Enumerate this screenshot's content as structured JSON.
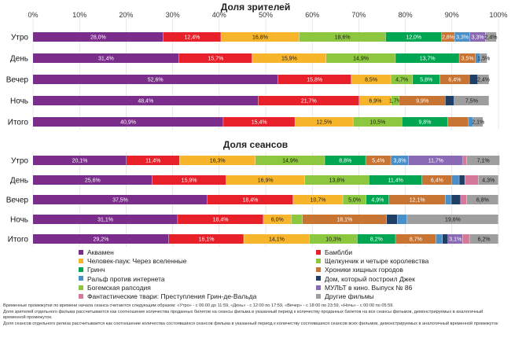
{
  "chart_data": [
    {
      "type": "bar",
      "orientation": "horizontal",
      "stacked": true,
      "title": "Доля зрителей",
      "xlim": [
        0,
        100
      ],
      "x_ticks": [
        "0%",
        "10%",
        "20%",
        "30%",
        "40%",
        "50%",
        "60%",
        "70%",
        "80%",
        "90%",
        "100%"
      ],
      "categories": [
        "Утро",
        "День",
        "Вечер",
        "Ночь",
        "Итого"
      ],
      "values": [
        [
          28.0,
          12.4,
          16.8,
          18.6,
          12.0,
          2.8,
          3.3,
          3.3,
          2.4
        ],
        [
          31.4,
          15.7,
          15.9,
          14.9,
          13.7,
          3.5,
          1.0,
          1.5
        ],
        [
          52.6,
          15.8,
          8.5,
          4.7,
          5.8,
          6.4,
          1.8,
          2.4
        ],
        [
          48.4,
          21.7,
          6.9,
          1.7,
          9.9,
          1.9,
          7.5
        ],
        [
          40.9,
          15.4,
          12.5,
          10.5,
          9.8,
          4.5,
          1.0,
          2.1
        ]
      ],
      "labels": [
        [
          "28,0%",
          "12,4%",
          "16,8%",
          "18,6%",
          "12,0%",
          "2,8%",
          "3,3%",
          "3,3%",
          "2,4%"
        ],
        [
          "31,4%",
          "15,7%",
          "15,9%",
          "14,9%",
          "13,7%",
          "3,5%",
          "",
          "1,5%"
        ],
        [
          "52,6%",
          "15,8%",
          "8,5%",
          "4,7%",
          "5,8%",
          "6,4%",
          "",
          "2,4%"
        ],
        [
          "48,4%",
          "21,7%",
          "6,9%",
          "1,7%",
          "9,9%",
          "",
          "7,5%"
        ],
        [
          "40,9%",
          "15,4%",
          "12,5%",
          "10,5%",
          "9,8%",
          "",
          "",
          "2,1%"
        ]
      ],
      "colors": [
        [
          "#7b2d8b",
          "#e8202a",
          "#f7b52b",
          "#8dc63f",
          "#00a651",
          "#c87533",
          "#4a90c8",
          "#8b6ab5",
          "#9e9e9e"
        ],
        [
          "#7b2d8b",
          "#e8202a",
          "#f7b52b",
          "#8dc63f",
          "#00a651",
          "#c87533",
          "#4a90c8",
          "#9e9e9e"
        ],
        [
          "#7b2d8b",
          "#e8202a",
          "#f7b52b",
          "#8dc63f",
          "#00a651",
          "#c87533",
          "#1f3f66",
          "#9e9e9e"
        ],
        [
          "#7b2d8b",
          "#e8202a",
          "#f7b52b",
          "#8dc63f",
          "#c87533",
          "#1f3f66",
          "#9e9e9e"
        ],
        [
          "#7b2d8b",
          "#e8202a",
          "#f7b52b",
          "#8dc63f",
          "#00a651",
          "#c87533",
          "#4a90c8",
          "#9e9e9e"
        ]
      ]
    },
    {
      "type": "bar",
      "orientation": "horizontal",
      "stacked": true,
      "title": "Доля сеансов",
      "xlim": [
        0,
        100
      ],
      "categories": [
        "Утро",
        "День",
        "Вечер",
        "Ночь",
        "Итого"
      ],
      "values": [
        [
          20.1,
          11.4,
          16.3,
          14.9,
          8.8,
          5.4,
          3.8,
          11.7,
          0.8,
          7.1
        ],
        [
          25.6,
          15.9,
          16.9,
          13.8,
          11.4,
          6.4,
          1.6,
          1.2,
          2.9,
          4.3
        ],
        [
          37.5,
          18.4,
          10.7,
          5.0,
          4.9,
          12.1,
          1.3,
          2.0,
          1.3,
          6.8
        ],
        [
          31.1,
          18.4,
          6.0,
          2.4,
          18.1,
          2.3,
          2.1,
          19.6
        ],
        [
          29.2,
          16.1,
          14.1,
          10.3,
          8.2,
          8.7,
          1.4,
          1.2,
          3.1,
          1.5,
          6.2
        ]
      ],
      "labels": [
        [
          "20,1%",
          "11,4%",
          "16,3%",
          "14,9%",
          "8,8%",
          "5,4%",
          "3,8%",
          "11,7%",
          "",
          "7,1%"
        ],
        [
          "25,6%",
          "15,9%",
          "16,9%",
          "13,8%",
          "11,4%",
          "6,4%",
          "",
          "",
          "",
          "4,3%"
        ],
        [
          "37,5%",
          "18,4%",
          "10,7%",
          "5,0%",
          "4,9%",
          "12,1%",
          "",
          "",
          "",
          "6,8%"
        ],
        [
          "31,1%",
          "18,4%",
          "6,0%",
          "",
          "18,1%",
          "",
          "",
          "19,6%"
        ],
        [
          "29,2%",
          "16,1%",
          "14,1%",
          "10,3%",
          "8,2%",
          "8,7%",
          "",
          "",
          "3,1%",
          "",
          "6,2%"
        ]
      ],
      "colors": [
        [
          "#7b2d8b",
          "#e8202a",
          "#f7b52b",
          "#8dc63f",
          "#00a651",
          "#c87533",
          "#4a90c8",
          "#8b6ab5",
          "#d4789c",
          "#9e9e9e"
        ],
        [
          "#7b2d8b",
          "#e8202a",
          "#f7b52b",
          "#8dc63f",
          "#00a651",
          "#c87533",
          "#4a90c8",
          "#1f3f66",
          "#d4789c",
          "#9e9e9e"
        ],
        [
          "#7b2d8b",
          "#e8202a",
          "#f7b52b",
          "#8dc63f",
          "#00a651",
          "#c87533",
          "#4a90c8",
          "#1f3f66",
          "#d4789c",
          "#9e9e9e"
        ],
        [
          "#7b2d8b",
          "#e8202a",
          "#f7b52b",
          "#8dc63f",
          "#c87533",
          "#1f3f66",
          "#4a90c8",
          "#9e9e9e"
        ],
        [
          "#7b2d8b",
          "#e8202a",
          "#f7b52b",
          "#8dc63f",
          "#00a651",
          "#c87533",
          "#4a90c8",
          "#1f3f66",
          "#8b6ab5",
          "#d4789c",
          "#9e9e9e"
        ]
      ]
    }
  ],
  "legend": [
    {
      "label": "Аквамен",
      "color": "#7b2d8b"
    },
    {
      "label": "Бамблби",
      "color": "#e8202a"
    },
    {
      "label": "Человек-паук: Через вселенные",
      "color": "#f7b52b"
    },
    {
      "label": "Щелкунчик и четыре королевства",
      "color": "#8dc63f"
    },
    {
      "label": "Гринч",
      "color": "#00a651"
    },
    {
      "label": "Хроники хищных городов",
      "color": "#c87533"
    },
    {
      "label": "Ральф против интернета",
      "color": "#4a90c8"
    },
    {
      "label": "Дом, который построил Джек",
      "color": "#1f3f66"
    },
    {
      "label": "Богемская рапсодия",
      "color": "#8dc63f"
    },
    {
      "label": "МУЛЬТ в кино. Выпуск № 86",
      "color": "#8b6ab5"
    },
    {
      "label": "Фантастические твари: Преступления Грин-де-Вальда",
      "color": "#d4789c"
    },
    {
      "label": "Другие фильмы",
      "color": "#9e9e9e"
    }
  ],
  "notes": [
    "Временные промежутки по времени начала сеанса считаются следующим образом: «Утро» - с 06:00 до 11:59, «День» - с 12:00 по 17:59, «Вечер» - с 18:00 по 23:59, «Ночь» - с 00:00 по 05:59.",
    "Доля зрителей отдельного фильма рассчитывается как соотношение количества проданных билетов на сеансы фильма в указанный период к количеству проданных билетов на все сеансы фильмов, демонстрируемых в аналогичный временной промежуток.",
    "Доля сеансов отдельного релиза рассчитывается как соотношение количества состоявшихся сеансов фильма в указанный период к количеству состоявшихся сеансов всех фильмов, демонстрируемых в аналогичный временной промежуток"
  ]
}
